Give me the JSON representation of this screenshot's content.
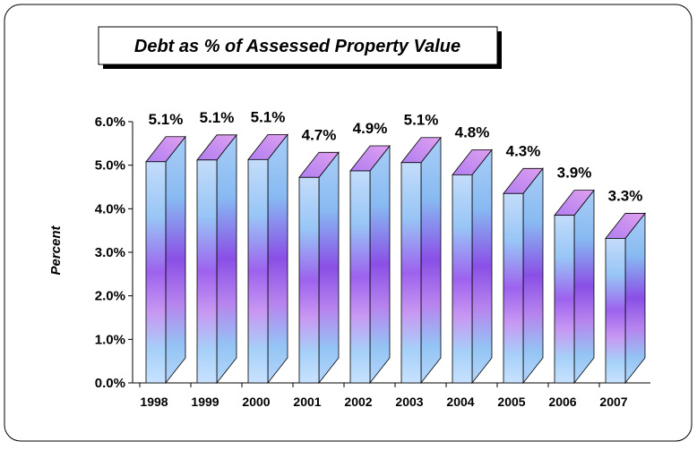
{
  "chart_data": {
    "type": "bar3d",
    "title": "Debt as % of Assessed Property Value",
    "y_label": "Percent",
    "categories": [
      "1998",
      "1999",
      "2000",
      "2001",
      "2002",
      "2003",
      "2004",
      "2005",
      "2006",
      "2007"
    ],
    "values": [
      5.08,
      5.12,
      5.13,
      4.72,
      4.87,
      5.06,
      4.78,
      4.35,
      3.85,
      3.32
    ],
    "value_labels": [
      "5.1%",
      "5.1%",
      "5.1%",
      "4.7%",
      "4.9%",
      "5.1%",
      "4.8%",
      "4.3%",
      "3.9%",
      "3.3%"
    ],
    "ylim": [
      0,
      6
    ],
    "yticks": [
      {
        "value": 0,
        "label": "0.0%"
      },
      {
        "value": 1,
        "label": "1.0%"
      },
      {
        "value": 2,
        "label": "2.0%"
      },
      {
        "value": 3,
        "label": "3.0%"
      },
      {
        "value": 4,
        "label": "4.0%"
      },
      {
        "value": 5,
        "label": "5.0%"
      },
      {
        "value": 6,
        "label": "6.0%"
      }
    ]
  }
}
